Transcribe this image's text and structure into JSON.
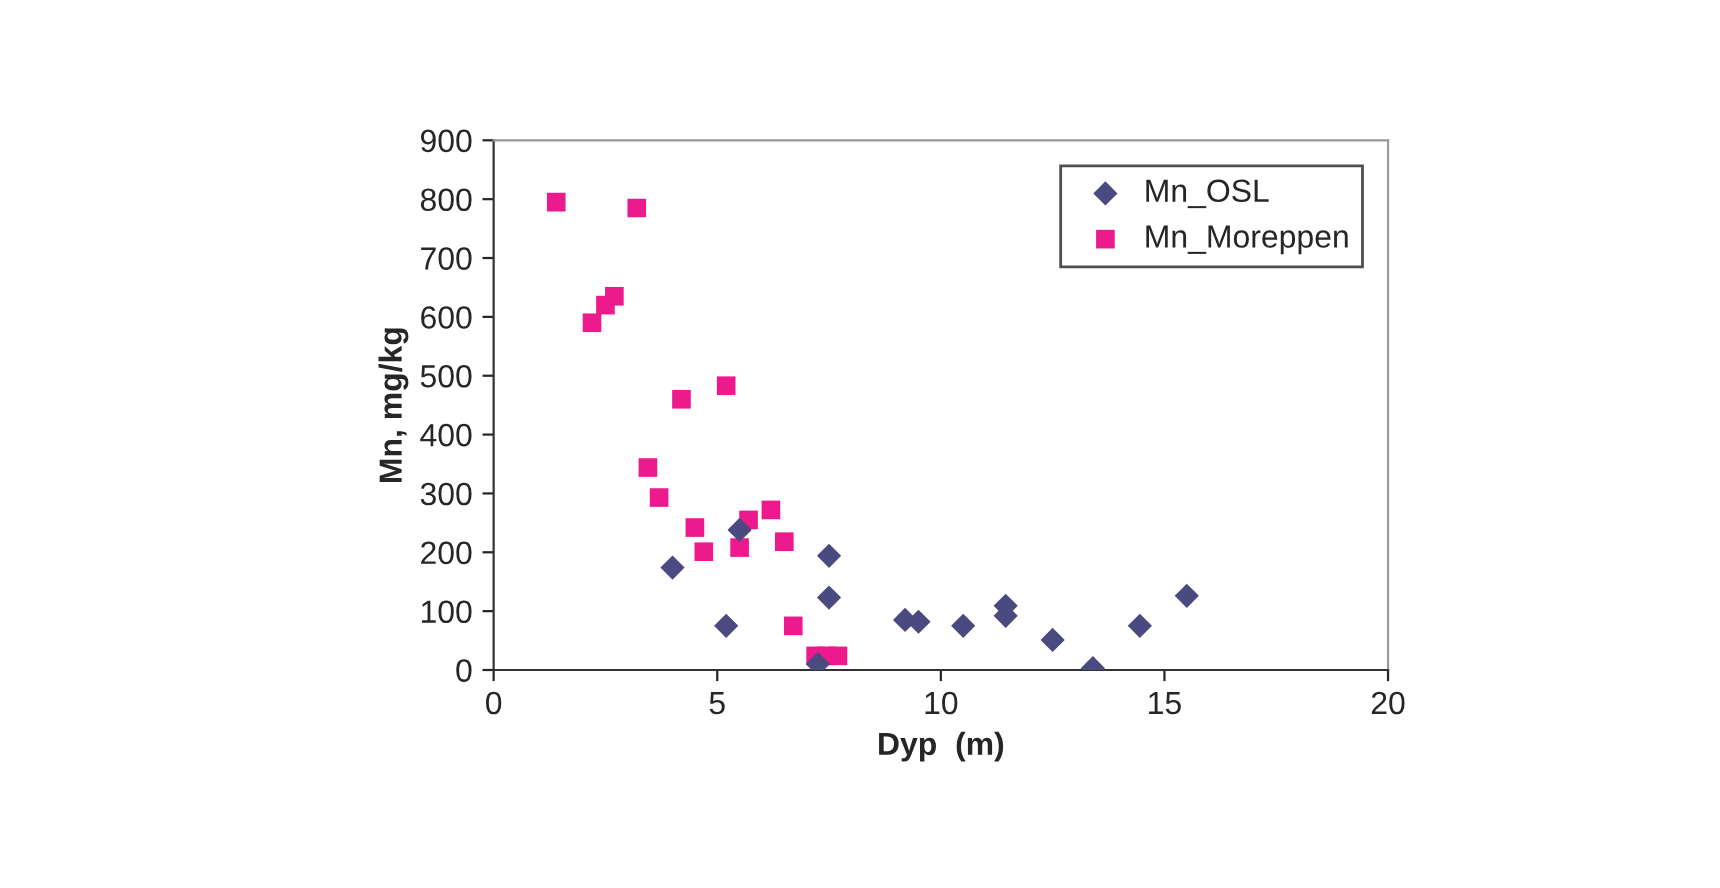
{
  "chart_data": {
    "type": "scatter",
    "xlabel": "Dyp  (m)",
    "ylabel": "Mn, mg/kg",
    "xlim": [
      0,
      20
    ],
    "xticks": [
      0,
      5,
      10,
      15,
      20
    ],
    "ylim": [
      0,
      900
    ],
    "yticks": [
      0,
      100,
      200,
      300,
      400,
      500,
      600,
      700,
      800,
      900
    ],
    "grid": false,
    "legend": "top right",
    "series": [
      {
        "name": "Mn_OSL",
        "color": "#4b4a80",
        "marker": "diamond",
        "x": [
          4.0,
          5.2,
          5.5,
          7.5,
          7.5,
          7.25,
          9.2,
          9.5,
          10.5,
          11.45,
          11.45,
          12.5,
          13.4,
          14.45,
          15.5
        ],
        "values": [
          174,
          75,
          238,
          194,
          123,
          10,
          85,
          82,
          75,
          109,
          92,
          51,
          3,
          75,
          126
        ]
      },
      {
        "name": "Mn_Moreppen",
        "color": "#ec1a8c",
        "marker": "square",
        "x": [
          1.4,
          3.2,
          2.2,
          2.5,
          2.7,
          4.2,
          5.2,
          3.45,
          3.7,
          4.5,
          4.7,
          5.5,
          5.7,
          6.2,
          6.5,
          6.7,
          7.2,
          7.45,
          7.7
        ],
        "values": [
          795,
          785,
          590,
          620,
          635,
          460,
          483,
          344,
          293,
          242,
          201,
          208,
          255,
          272,
          218,
          75,
          24,
          24,
          24
        ]
      }
    ]
  }
}
